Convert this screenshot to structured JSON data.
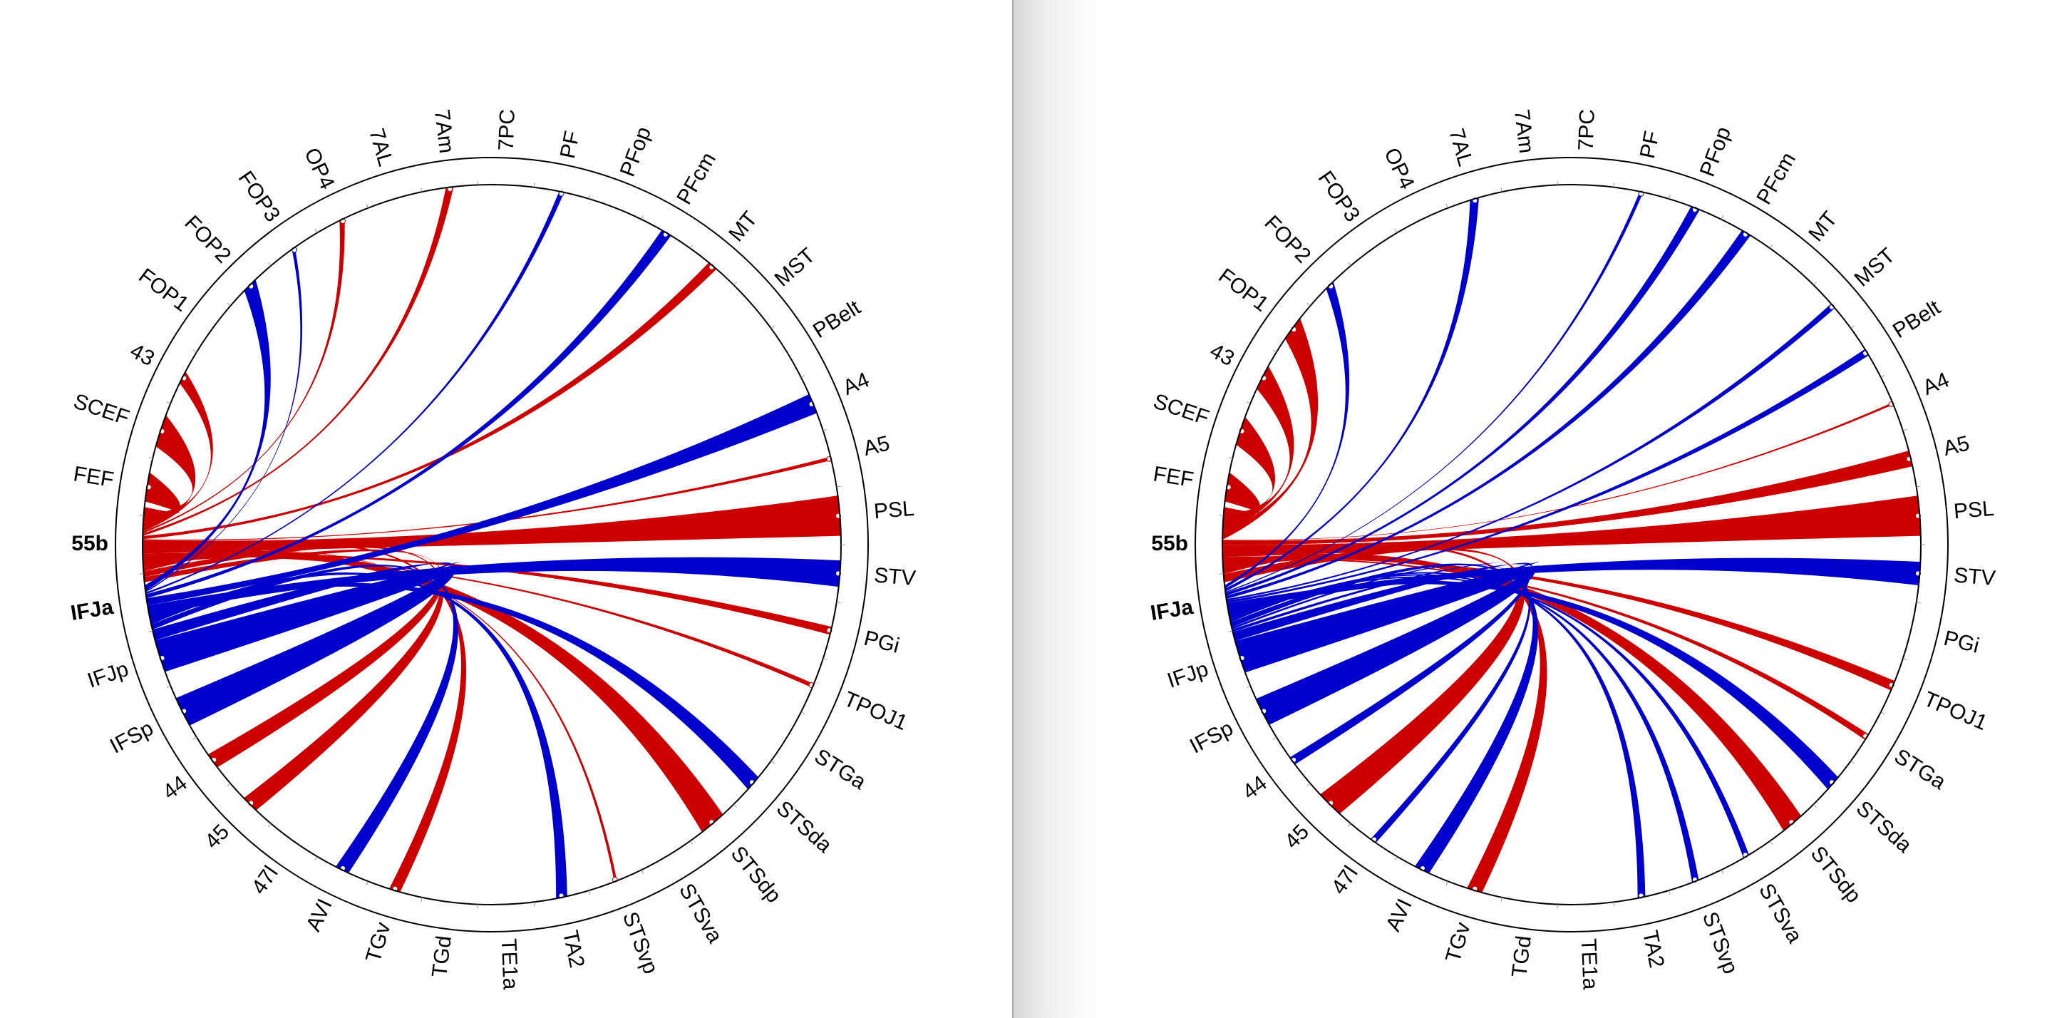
{
  "colors": {
    "source_a": "#cc0000",
    "source_b": "#0000cc",
    "ring": "#000000"
  },
  "regions": [
    "55b",
    "FEF",
    "SCEF",
    "43",
    "FOP1",
    "FOP2",
    "FOP3",
    "OP4",
    "7AL",
    "7Am",
    "7PC",
    "PF",
    "PFop",
    "PFcm",
    "MT",
    "MST",
    "PBelt",
    "A4",
    "A5",
    "PSL",
    "STV",
    "PGi",
    "TPOJ1",
    "STGa",
    "STSda",
    "STSdp",
    "STSva",
    "STSvp",
    "TA2",
    "TE1a",
    "TGd",
    "TGv",
    "AVI",
    "47l",
    "45",
    "44",
    "IFSp",
    "IFJp",
    "IFJa"
  ],
  "sources": {
    "55b": "source_a",
    "IFJa": "source_b"
  },
  "diagrams": [
    {
      "name": "left",
      "chords": [
        {
          "source": "55b",
          "target": "FEF",
          "weight": 40
        },
        {
          "source": "55b",
          "target": "SCEF",
          "weight": 45
        },
        {
          "source": "55b",
          "target": "43",
          "weight": 18
        },
        {
          "source": "55b",
          "target": "OP4",
          "weight": 8
        },
        {
          "source": "55b",
          "target": "7Am",
          "weight": 11
        },
        {
          "source": "55b",
          "target": "MT",
          "weight": 14
        },
        {
          "source": "55b",
          "target": "A5",
          "weight": 5
        },
        {
          "source": "55b",
          "target": "PSL",
          "weight": 55
        },
        {
          "source": "55b",
          "target": "PGi",
          "weight": 11
        },
        {
          "source": "55b",
          "target": "TPOJ1",
          "weight": 6
        },
        {
          "source": "55b",
          "target": "STSdp",
          "weight": 38
        },
        {
          "source": "55b",
          "target": "STSvp",
          "weight": 4
        },
        {
          "source": "55b",
          "target": "TGv",
          "weight": 16
        },
        {
          "source": "55b",
          "target": "45",
          "weight": 24
        },
        {
          "source": "55b",
          "target": "44",
          "weight": 22
        },
        {
          "source": "IFJa",
          "target": "FOP2",
          "weight": 22
        },
        {
          "source": "IFJa",
          "target": "FOP3",
          "weight": 5
        },
        {
          "source": "IFJa",
          "target": "PF",
          "weight": 7
        },
        {
          "source": "IFJa",
          "target": "PFcm",
          "weight": 15
        },
        {
          "source": "IFJa",
          "target": "A4",
          "weight": 28
        },
        {
          "source": "IFJa",
          "target": "STV",
          "weight": 36
        },
        {
          "source": "IFJa",
          "target": "STSda",
          "weight": 22
        },
        {
          "source": "IFJa",
          "target": "TA2",
          "weight": 16
        },
        {
          "source": "IFJa",
          "target": "AVI",
          "weight": 20
        },
        {
          "source": "IFJa",
          "target": "IFSp",
          "weight": 42
        },
        {
          "source": "IFJa",
          "target": "IFJp",
          "weight": 38
        }
      ]
    },
    {
      "name": "right",
      "chords": [
        {
          "source": "55b",
          "target": "FEF",
          "weight": 40
        },
        {
          "source": "55b",
          "target": "SCEF",
          "weight": 40
        },
        {
          "source": "55b",
          "target": "43",
          "weight": 35
        },
        {
          "source": "55b",
          "target": "FOP1",
          "weight": 35
        },
        {
          "source": "55b",
          "target": "A4",
          "weight": 3
        },
        {
          "source": "55b",
          "target": "A5",
          "weight": 22
        },
        {
          "source": "55b",
          "target": "PSL",
          "weight": 55
        },
        {
          "source": "55b",
          "target": "TPOJ1",
          "weight": 14
        },
        {
          "source": "55b",
          "target": "STGa",
          "weight": 9
        },
        {
          "source": "55b",
          "target": "STSdp",
          "weight": 32
        },
        {
          "source": "55b",
          "target": "TGv",
          "weight": 22
        },
        {
          "source": "55b",
          "target": "45",
          "weight": 38
        },
        {
          "source": "IFJa",
          "target": "FOP2",
          "weight": 14
        },
        {
          "source": "IFJa",
          "target": "7AL",
          "weight": 13
        },
        {
          "source": "IFJa",
          "target": "PF",
          "weight": 5
        },
        {
          "source": "IFJa",
          "target": "PFop",
          "weight": 13
        },
        {
          "source": "IFJa",
          "target": "PFcm",
          "weight": 14
        },
        {
          "source": "IFJa",
          "target": "MST",
          "weight": 8
        },
        {
          "source": "IFJa",
          "target": "PBelt",
          "weight": 10
        },
        {
          "source": "IFJa",
          "target": "STV",
          "weight": 32
        },
        {
          "source": "IFJa",
          "target": "STSda",
          "weight": 22
        },
        {
          "source": "IFJa",
          "target": "STSva",
          "weight": 9
        },
        {
          "source": "IFJa",
          "target": "STSvp",
          "weight": 10
        },
        {
          "source": "IFJa",
          "target": "TA2",
          "weight": 11
        },
        {
          "source": "IFJa",
          "target": "AVI",
          "weight": 22
        },
        {
          "source": "IFJa",
          "target": "47l",
          "weight": 9
        },
        {
          "source": "IFJa",
          "target": "44",
          "weight": 12
        },
        {
          "source": "IFJa",
          "target": "IFSp",
          "weight": 40
        },
        {
          "source": "IFJa",
          "target": "IFJp",
          "weight": 40
        }
      ]
    }
  ]
}
